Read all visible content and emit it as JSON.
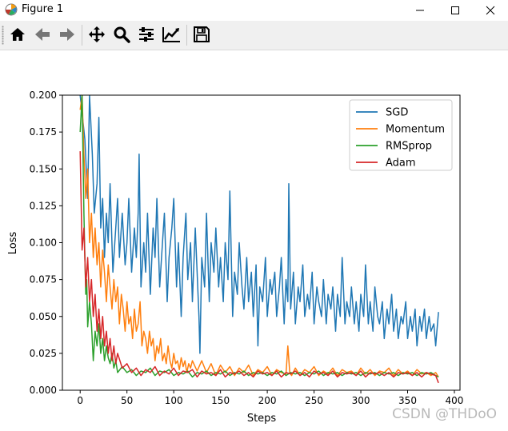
{
  "window": {
    "title": "Figure 1",
    "app_icon": "matplotlib-icon",
    "controls": [
      "minimize-icon",
      "maximize-icon",
      "close-icon"
    ]
  },
  "toolbar": {
    "buttons": [
      "home-icon",
      "back-arrow-icon",
      "forward-arrow-icon",
      "pan-icon",
      "zoom-icon",
      "subplots-icon",
      "edit-axis-icon",
      "save-icon"
    ]
  },
  "watermark": "CSDN @THDoO",
  "chart_data": {
    "type": "line",
    "title": "",
    "xlabel": "Steps",
    "ylabel": "Loss",
    "xlim": [
      -19,
      406
    ],
    "ylim": [
      0.0,
      0.2
    ],
    "xticks": [
      0,
      50,
      100,
      150,
      200,
      250,
      300,
      350,
      400
    ],
    "xtick_labels": [
      "0",
      "50",
      "100",
      "150",
      "200",
      "250",
      "300",
      "350",
      "400"
    ],
    "yticks": [
      0.0,
      0.025,
      0.05,
      0.075,
      0.1,
      0.125,
      0.15,
      0.175,
      0.2
    ],
    "ytick_labels": [
      "0.000",
      "0.025",
      "0.050",
      "0.075",
      "0.100",
      "0.125",
      "0.150",
      "0.175",
      "0.200"
    ],
    "grid": false,
    "legend_position": "top-right",
    "series": [
      {
        "name": "SGD",
        "color": "#1f77b4",
        "x": [
          0,
          5,
          8,
          10,
          13,
          15,
          18,
          20,
          22,
          24,
          26,
          28,
          30,
          32,
          35,
          38,
          40,
          42,
          45,
          48,
          50,
          52,
          55,
          58,
          60,
          62,
          63,
          65,
          68,
          70,
          72,
          75,
          78,
          80,
          82,
          85,
          88,
          90,
          93,
          95,
          98,
          100,
          103,
          105,
          108,
          110,
          113,
          115,
          118,
          120,
          123,
          125,
          127,
          128,
          130,
          133,
          135,
          138,
          140,
          143,
          145,
          148,
          150,
          153,
          155,
          158,
          160,
          163,
          165,
          168,
          170,
          173,
          175,
          178,
          180,
          183,
          185,
          188,
          190,
          192,
          195,
          198,
          200,
          203,
          205,
          208,
          210,
          213,
          215,
          218,
          220,
          222,
          223,
          225,
          228,
          230,
          233,
          235,
          238,
          240,
          243,
          245,
          248,
          250,
          253,
          255,
          258,
          260,
          263,
          265,
          268,
          270,
          273,
          275,
          278,
          280,
          283,
          285,
          288,
          290,
          293,
          295,
          298,
          300,
          303,
          305,
          308,
          310,
          313,
          315,
          318,
          320,
          323,
          325,
          328,
          330,
          333,
          335,
          338,
          340,
          343,
          345,
          348,
          350,
          353,
          355,
          358,
          360,
          363,
          365,
          368,
          370,
          373,
          375,
          378,
          380,
          383
        ],
        "y": [
          0.2,
          0.17,
          0.13,
          0.2,
          0.16,
          0.12,
          0.14,
          0.185,
          0.11,
          0.13,
          0.09,
          0.12,
          0.1,
          0.14,
          0.08,
          0.11,
          0.13,
          0.09,
          0.12,
          0.085,
          0.1,
          0.13,
          0.08,
          0.11,
          0.09,
          0.12,
          0.16,
          0.07,
          0.1,
          0.08,
          0.12,
          0.065,
          0.11,
          0.09,
          0.13,
          0.07,
          0.1,
          0.12,
          0.06,
          0.09,
          0.11,
          0.13,
          0.07,
          0.1,
          0.05,
          0.09,
          0.12,
          0.075,
          0.1,
          0.06,
          0.11,
          0.08,
          0.05,
          0.025,
          0.09,
          0.07,
          0.12,
          0.06,
          0.1,
          0.08,
          0.11,
          0.07,
          0.09,
          0.06,
          0.1,
          0.075,
          0.135,
          0.05,
          0.08,
          0.065,
          0.1,
          0.07,
          0.055,
          0.09,
          0.06,
          0.08,
          0.05,
          0.085,
          0.03,
          0.07,
          0.06,
          0.09,
          0.05,
          0.075,
          0.065,
          0.08,
          0.05,
          0.07,
          0.09,
          0.045,
          0.075,
          0.06,
          0.14,
          0.055,
          0.08,
          0.045,
          0.07,
          0.06,
          0.085,
          0.05,
          0.065,
          0.055,
          0.08,
          0.045,
          0.07,
          0.06,
          0.05,
          0.075,
          0.045,
          0.065,
          0.055,
          0.07,
          0.04,
          0.065,
          0.05,
          0.09,
          0.045,
          0.06,
          0.05,
          0.07,
          0.045,
          0.06,
          0.04,
          0.065,
          0.05,
          0.085,
          0.045,
          0.06,
          0.04,
          0.07,
          0.05,
          0.045,
          0.06,
          0.035,
          0.055,
          0.045,
          0.065,
          0.04,
          0.055,
          0.035,
          0.05,
          0.045,
          0.06,
          0.035,
          0.05,
          0.04,
          0.055,
          0.03,
          0.05,
          0.04,
          0.055,
          0.035,
          0.05,
          0.04,
          0.045,
          0.03,
          0.053
        ]
      },
      {
        "name": "Momentum",
        "color": "#ff7f0e",
        "x": [
          0,
          2,
          4,
          6,
          8,
          10,
          12,
          14,
          16,
          18,
          20,
          22,
          24,
          26,
          28,
          30,
          32,
          34,
          36,
          38,
          40,
          42,
          44,
          46,
          48,
          50,
          52,
          54,
          56,
          58,
          60,
          62,
          64,
          66,
          68,
          70,
          72,
          74,
          76,
          78,
          80,
          82,
          84,
          86,
          88,
          90,
          92,
          94,
          96,
          98,
          100,
          102,
          104,
          106,
          108,
          110,
          112,
          114,
          116,
          118,
          120,
          125,
          130,
          135,
          140,
          145,
          150,
          155,
          160,
          165,
          170,
          175,
          180,
          185,
          190,
          195,
          200,
          205,
          210,
          215,
          220,
          222,
          224,
          226,
          230,
          235,
          240,
          245,
          250,
          255,
          260,
          265,
          270,
          275,
          280,
          285,
          290,
          295,
          300,
          305,
          310,
          315,
          320,
          325,
          330,
          335,
          340,
          345,
          350,
          355,
          360,
          365,
          370,
          375,
          380,
          383
        ],
        "y": [
          0.19,
          0.2,
          0.16,
          0.13,
          0.15,
          0.1,
          0.12,
          0.09,
          0.11,
          0.085,
          0.1,
          0.07,
          0.095,
          0.08,
          0.06,
          0.085,
          0.07,
          0.055,
          0.075,
          0.06,
          0.07,
          0.045,
          0.065,
          0.055,
          0.04,
          0.06,
          0.045,
          0.05,
          0.035,
          0.055,
          0.04,
          0.045,
          0.06,
          0.03,
          0.04,
          0.035,
          0.025,
          0.04,
          0.03,
          0.035,
          0.02,
          0.03,
          0.025,
          0.035,
          0.02,
          0.025,
          0.018,
          0.03,
          0.02,
          0.015,
          0.025,
          0.018,
          0.02,
          0.014,
          0.022,
          0.016,
          0.02,
          0.012,
          0.018,
          0.015,
          0.02,
          0.013,
          0.02,
          0.012,
          0.018,
          0.01,
          0.017,
          0.012,
          0.016,
          0.01,
          0.015,
          0.012,
          0.017,
          0.01,
          0.014,
          0.012,
          0.016,
          0.01,
          0.014,
          0.012,
          0.011,
          0.03,
          0.012,
          0.01,
          0.015,
          0.01,
          0.014,
          0.012,
          0.016,
          0.01,
          0.013,
          0.011,
          0.015,
          0.01,
          0.014,
          0.012,
          0.013,
          0.01,
          0.015,
          0.011,
          0.014,
          0.01,
          0.013,
          0.012,
          0.015,
          0.01,
          0.014,
          0.011,
          0.013,
          0.01,
          0.014,
          0.011,
          0.012,
          0.01,
          0.012,
          0.009
        ]
      },
      {
        "name": "RMSprop",
        "color": "#2ca02c",
        "x": [
          0,
          2,
          4,
          5,
          6,
          7,
          8,
          10,
          12,
          14,
          16,
          18,
          20,
          22,
          24,
          26,
          28,
          30,
          32,
          34,
          36,
          38,
          40,
          45,
          50,
          55,
          60,
          65,
          70,
          75,
          80,
          85,
          90,
          95,
          100,
          105,
          110,
          115,
          120,
          125,
          130,
          135,
          140,
          145,
          150,
          155,
          160,
          165,
          170,
          175,
          180,
          185,
          190,
          195,
          200,
          205,
          210,
          215,
          220,
          225,
          230,
          235,
          240,
          245,
          250,
          255,
          260,
          265,
          270,
          275,
          280,
          285,
          290,
          295,
          300,
          305,
          310,
          315,
          320,
          325,
          330,
          335,
          340,
          345,
          350,
          355,
          360,
          365,
          370,
          375,
          380,
          383
        ],
        "y": [
          0.175,
          0.2,
          0.12,
          0.09,
          0.065,
          0.075,
          0.043,
          0.06,
          0.045,
          0.02,
          0.04,
          0.03,
          0.045,
          0.025,
          0.035,
          0.02,
          0.03,
          0.022,
          0.018,
          0.025,
          0.015,
          0.02,
          0.012,
          0.016,
          0.012,
          0.014,
          0.01,
          0.013,
          0.012,
          0.015,
          0.01,
          0.013,
          0.012,
          0.014,
          0.01,
          0.012,
          0.011,
          0.013,
          0.009,
          0.012,
          0.011,
          0.013,
          0.01,
          0.012,
          0.011,
          0.013,
          0.01,
          0.012,
          0.011,
          0.013,
          0.01,
          0.012,
          0.011,
          0.012,
          0.01,
          0.012,
          0.011,
          0.013,
          0.01,
          0.012,
          0.011,
          0.012,
          0.01,
          0.012,
          0.011,
          0.013,
          0.01,
          0.012,
          0.011,
          0.012,
          0.01,
          0.012,
          0.011,
          0.012,
          0.01,
          0.012,
          0.011,
          0.012,
          0.01,
          0.012,
          0.011,
          0.012,
          0.01,
          0.012,
          0.011,
          0.012,
          0.01,
          0.012,
          0.011,
          0.012,
          0.01,
          0.009
        ]
      },
      {
        "name": "Adam",
        "color": "#d62728",
        "x": [
          0,
          2,
          4,
          6,
          8,
          10,
          12,
          14,
          16,
          18,
          20,
          22,
          24,
          26,
          28,
          30,
          32,
          34,
          36,
          38,
          40,
          45,
          50,
          55,
          60,
          65,
          70,
          75,
          80,
          85,
          90,
          95,
          100,
          105,
          110,
          115,
          120,
          125,
          130,
          135,
          140,
          145,
          150,
          155,
          160,
          165,
          170,
          175,
          180,
          185,
          190,
          195,
          200,
          205,
          210,
          215,
          220,
          225,
          230,
          235,
          240,
          245,
          250,
          255,
          260,
          265,
          270,
          275,
          280,
          285,
          290,
          295,
          300,
          305,
          310,
          315,
          320,
          325,
          330,
          335,
          340,
          345,
          350,
          355,
          360,
          365,
          370,
          375,
          380,
          383
        ],
        "y": [
          0.162,
          0.095,
          0.11,
          0.07,
          0.09,
          0.06,
          0.075,
          0.05,
          0.065,
          0.04,
          0.055,
          0.035,
          0.05,
          0.03,
          0.04,
          0.025,
          0.035,
          0.02,
          0.03,
          0.018,
          0.025,
          0.015,
          0.018,
          0.012,
          0.015,
          0.01,
          0.014,
          0.012,
          0.016,
          0.01,
          0.013,
          0.011,
          0.015,
          0.01,
          0.013,
          0.012,
          0.014,
          0.009,
          0.013,
          0.011,
          0.012,
          0.01,
          0.014,
          0.009,
          0.012,
          0.011,
          0.013,
          0.01,
          0.012,
          0.009,
          0.013,
          0.011,
          0.012,
          0.01,
          0.013,
          0.009,
          0.012,
          0.011,
          0.013,
          0.01,
          0.012,
          0.009,
          0.013,
          0.011,
          0.012,
          0.01,
          0.013,
          0.009,
          0.012,
          0.011,
          0.012,
          0.01,
          0.013,
          0.009,
          0.012,
          0.011,
          0.012,
          0.01,
          0.012,
          0.009,
          0.012,
          0.011,
          0.012,
          0.01,
          0.012,
          0.009,
          0.012,
          0.011,
          0.01,
          0.005
        ]
      }
    ]
  }
}
